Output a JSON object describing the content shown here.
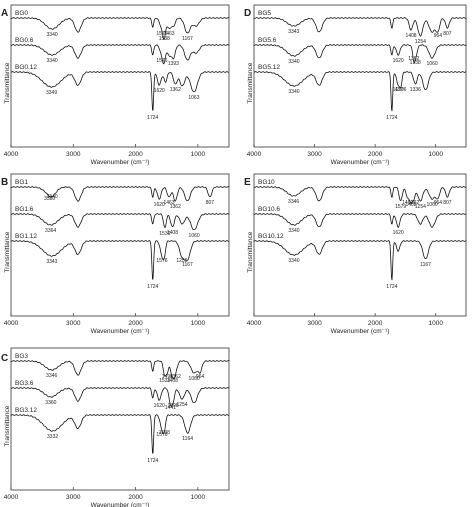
{
  "panels": [
    {
      "letter": "A",
      "spectra": [
        {
          "name": "BG0",
          "peaks": [
            {
              "x": 3340,
              "d": 11,
              "w": 110,
              "label": "3340"
            },
            {
              "x": 2925,
              "d": 14,
              "w": 50,
              "label": ""
            },
            {
              "x": 1724,
              "d": 9,
              "w": 16,
              "label": ""
            },
            {
              "x": 1576,
              "d": 10,
              "w": 34,
              "label": "1576"
            },
            {
              "x": 1538,
              "d": 15,
              "w": 22,
              "label": "1538"
            },
            {
              "x": 1463,
              "d": 10,
              "w": 30,
              "label": "1463"
            },
            {
              "x": 1393,
              "d": 8,
              "w": 30,
              "label": ""
            },
            {
              "x": 1167,
              "d": 15,
              "w": 45,
              "label": "1167"
            },
            {
              "x": 1030,
              "d": 8,
              "w": 50,
              "label": ""
            }
          ]
        },
        {
          "name": "BG0.6",
          "peaks": [
            {
              "x": 3340,
              "d": 10,
              "w": 120,
              "label": "3340"
            },
            {
              "x": 2925,
              "d": 13,
              "w": 50,
              "label": ""
            },
            {
              "x": 1724,
              "d": 10,
              "w": 16,
              "label": ""
            },
            {
              "x": 1576,
              "d": 10,
              "w": 30,
              "label": "1576"
            },
            {
              "x": 1540,
              "d": 13,
              "w": 22,
              "label": ""
            },
            {
              "x": 1463,
              "d": 10,
              "w": 30,
              "label": ""
            },
            {
              "x": 1393,
              "d": 13,
              "w": 30,
              "label": "1393"
            },
            {
              "x": 1167,
              "d": 15,
              "w": 45,
              "label": ""
            },
            {
              "x": 1030,
              "d": 8,
              "w": 50,
              "label": ""
            }
          ]
        },
        {
          "name": "BG0.12",
          "peaks": [
            {
              "x": 3349,
              "d": 15,
              "w": 150,
              "label": "3349"
            },
            {
              "x": 2925,
              "d": 13,
              "w": 50,
              "label": ""
            },
            {
              "x": 1724,
              "d": 40,
              "w": 14,
              "label": "1724"
            },
            {
              "x": 1620,
              "d": 13,
              "w": 30,
              "label": "1620"
            },
            {
              "x": 1520,
              "d": 10,
              "w": 25,
              "label": ""
            },
            {
              "x": 1362,
              "d": 12,
              "w": 30,
              "label": "1362"
            },
            {
              "x": 1250,
              "d": 14,
              "w": 40,
              "label": ""
            },
            {
              "x": 1063,
              "d": 20,
              "w": 55,
              "label": "1063"
            }
          ]
        }
      ]
    },
    {
      "letter": "B",
      "spectra": [
        {
          "name": "BG1",
          "peaks": [
            {
              "x": 3380,
              "d": 6,
              "w": 90,
              "label": "3380"
            },
            {
              "x": 3340,
              "d": 4,
              "w": 60,
              "label": "3340"
            },
            {
              "x": 2925,
              "d": 14,
              "w": 50,
              "label": ""
            },
            {
              "x": 1724,
              "d": 10,
              "w": 16,
              "label": ""
            },
            {
              "x": 1620,
              "d": 12,
              "w": 30,
              "label": "1620"
            },
            {
              "x": 1463,
              "d": 10,
              "w": 30,
              "label": "1463"
            },
            {
              "x": 1362,
              "d": 14,
              "w": 30,
              "label": "1362"
            },
            {
              "x": 1167,
              "d": 14,
              "w": 45,
              "label": ""
            },
            {
              "x": 807,
              "d": 10,
              "w": 30,
              "label": "807"
            }
          ]
        },
        {
          "name": "BG1.6",
          "peaks": [
            {
              "x": 3364,
              "d": 11,
              "w": 120,
              "label": "3364"
            },
            {
              "x": 2925,
              "d": 13,
              "w": 50,
              "label": ""
            },
            {
              "x": 1724,
              "d": 10,
              "w": 16,
              "label": ""
            },
            {
              "x": 1530,
              "d": 14,
              "w": 22,
              "label": "1530"
            },
            {
              "x": 1408,
              "d": 13,
              "w": 30,
              "label": "1408"
            },
            {
              "x": 1250,
              "d": 10,
              "w": 40,
              "label": ""
            },
            {
              "x": 1060,
              "d": 16,
              "w": 55,
              "label": "1060"
            }
          ]
        },
        {
          "name": "BG1.12",
          "peaks": [
            {
              "x": 3343,
              "d": 15,
              "w": 150,
              "label": "3343"
            },
            {
              "x": 2925,
              "d": 13,
              "w": 50,
              "label": ""
            },
            {
              "x": 1724,
              "d": 40,
              "w": 14,
              "label": "1724"
            },
            {
              "x": 1576,
              "d": 14,
              "w": 28,
              "label": "1576"
            },
            {
              "x": 1538,
              "d": 12,
              "w": 20,
              "label": ""
            },
            {
              "x": 1256,
              "d": 14,
              "w": 40,
              "label": "1256"
            },
            {
              "x": 1167,
              "d": 18,
              "w": 45,
              "label": "1167"
            }
          ]
        }
      ]
    },
    {
      "letter": "C",
      "spectra": [
        {
          "name": "BG3",
          "peaks": [
            {
              "x": 3346,
              "d": 9,
              "w": 110,
              "label": "3346"
            },
            {
              "x": 2925,
              "d": 14,
              "w": 50,
              "label": ""
            },
            {
              "x": 1724,
              "d": 10,
              "w": 16,
              "label": ""
            },
            {
              "x": 1533,
              "d": 14,
              "w": 22,
              "label": "1533"
            },
            {
              "x": 1490,
              "d": 10,
              "w": 20,
              "label": "1490"
            },
            {
              "x": 1408,
              "d": 14,
              "w": 30,
              "label": "1408"
            },
            {
              "x": 1362,
              "d": 10,
              "w": 30,
              "label": "1362"
            },
            {
              "x": 1060,
              "d": 12,
              "w": 50,
              "label": "1060"
            },
            {
              "x": 964,
              "d": 10,
              "w": 30,
              "label": "964"
            }
          ]
        },
        {
          "name": "BG3.6",
          "peaks": [
            {
              "x": 3360,
              "d": 9,
              "w": 110,
              "label": "3360"
            },
            {
              "x": 2925,
              "d": 13,
              "w": 50,
              "label": ""
            },
            {
              "x": 1724,
              "d": 10,
              "w": 16,
              "label": ""
            },
            {
              "x": 1620,
              "d": 12,
              "w": 30,
              "label": "1620"
            },
            {
              "x": 1441,
              "d": 14,
              "w": 25,
              "label": "1441"
            },
            {
              "x": 1398,
              "d": 12,
              "w": 25,
              "label": "1398"
            },
            {
              "x": 1254,
              "d": 11,
              "w": 40,
              "label": "1254"
            },
            {
              "x": 1060,
              "d": 15,
              "w": 50,
              "label": ""
            }
          ]
        },
        {
          "name": "BG3.12",
          "peaks": [
            {
              "x": 3332,
              "d": 16,
              "w": 150,
              "label": "3332"
            },
            {
              "x": 2925,
              "d": 13,
              "w": 50,
              "label": ""
            },
            {
              "x": 1724,
              "d": 40,
              "w": 14,
              "label": "1724"
            },
            {
              "x": 1576,
              "d": 14,
              "w": 28,
              "label": "1576"
            },
            {
              "x": 1538,
              "d": 12,
              "w": 20,
              "label": "1538"
            },
            {
              "x": 1164,
              "d": 18,
              "w": 45,
              "label": "1164"
            }
          ]
        }
      ]
    },
    {
      "letter": "D",
      "spectra": [
        {
          "name": "BG5",
          "peaks": [
            {
              "x": 3343,
              "d": 8,
              "w": 110,
              "label": "3343"
            },
            {
              "x": 2925,
              "d": 14,
              "w": 50,
              "label": ""
            },
            {
              "x": 1724,
              "d": 10,
              "w": 16,
              "label": ""
            },
            {
              "x": 1408,
              "d": 12,
              "w": 30,
              "label": "1408"
            },
            {
              "x": 1254,
              "d": 18,
              "w": 40,
              "label": "1254"
            },
            {
              "x": 1060,
              "d": 14,
              "w": 50,
              "label": ""
            },
            {
              "x": 964,
              "d": 12,
              "w": 30,
              "label": "964"
            },
            {
              "x": 807,
              "d": 10,
              "w": 30,
              "label": "807"
            }
          ]
        },
        {
          "name": "BG5.6",
          "peaks": [
            {
              "x": 3340,
              "d": 11,
              "w": 120,
              "label": "3340"
            },
            {
              "x": 2925,
              "d": 13,
              "w": 50,
              "label": ""
            },
            {
              "x": 1724,
              "d": 10,
              "w": 16,
              "label": ""
            },
            {
              "x": 1620,
              "d": 10,
              "w": 30,
              "label": "1620"
            },
            {
              "x": 1338,
              "d": 12,
              "w": 30,
              "label": "1338"
            },
            {
              "x": 1362,
              "d": 8,
              "w": 20,
              "label": "1362"
            },
            {
              "x": 1060,
              "d": 13,
              "w": 50,
              "label": "1060"
            }
          ]
        },
        {
          "name": "BG5.12",
          "peaks": [
            {
              "x": 3340,
              "d": 14,
              "w": 150,
              "label": "3340"
            },
            {
              "x": 2925,
              "d": 13,
              "w": 50,
              "label": ""
            },
            {
              "x": 1724,
              "d": 40,
              "w": 14,
              "label": "1724"
            },
            {
              "x": 1620,
              "d": 12,
              "w": 28,
              "label": "1620"
            },
            {
              "x": 1576,
              "d": 12,
              "w": 20,
              "label": "1576"
            },
            {
              "x": 1336,
              "d": 12,
              "w": 30,
              "label": "1336"
            },
            {
              "x": 1167,
              "d": 18,
              "w": 45,
              "label": ""
            }
          ]
        }
      ]
    },
    {
      "letter": "E",
      "spectra": [
        {
          "name": "BG10",
          "peaks": [
            {
              "x": 3346,
              "d": 9,
              "w": 110,
              "label": "3346"
            },
            {
              "x": 2925,
              "d": 14,
              "w": 50,
              "label": ""
            },
            {
              "x": 1724,
              "d": 10,
              "w": 16,
              "label": ""
            },
            {
              "x": 1579,
              "d": 14,
              "w": 26,
              "label": "1579"
            },
            {
              "x": 1463,
              "d": 10,
              "w": 28,
              "label": "1463"
            },
            {
              "x": 1408,
              "d": 12,
              "w": 26,
              "label": "1408"
            },
            {
              "x": 1362,
              "d": 10,
              "w": 26,
              "label": "1362"
            },
            {
              "x": 1254,
              "d": 14,
              "w": 40,
              "label": "1254"
            },
            {
              "x": 1060,
              "d": 12,
              "w": 50,
              "label": "1060"
            },
            {
              "x": 964,
              "d": 10,
              "w": 30,
              "label": "964"
            },
            {
              "x": 807,
              "d": 10,
              "w": 30,
              "label": "807"
            }
          ]
        },
        {
          "name": "BG10.6",
          "peaks": [
            {
              "x": 3340,
              "d": 11,
              "w": 120,
              "label": "3340"
            },
            {
              "x": 2925,
              "d": 13,
              "w": 50,
              "label": ""
            },
            {
              "x": 1724,
              "d": 10,
              "w": 16,
              "label": ""
            },
            {
              "x": 1620,
              "d": 13,
              "w": 30,
              "label": "1620"
            },
            {
              "x": 1254,
              "d": 10,
              "w": 40,
              "label": ""
            },
            {
              "x": 1060,
              "d": 13,
              "w": 50,
              "label": ""
            }
          ]
        },
        {
          "name": "BG10.12",
          "peaks": [
            {
              "x": 3340,
              "d": 14,
              "w": 150,
              "label": "3340"
            },
            {
              "x": 2925,
              "d": 13,
              "w": 50,
              "label": ""
            },
            {
              "x": 1724,
              "d": 40,
              "w": 14,
              "label": "1724"
            },
            {
              "x": 1620,
              "d": 10,
              "w": 28,
              "label": ""
            },
            {
              "x": 1167,
              "d": 18,
              "w": 45,
              "label": "1167"
            }
          ]
        }
      ]
    }
  ],
  "chart_data": [
    {
      "panel": "A",
      "type": "line",
      "xlabel": "Wavenumber (cm⁻¹)",
      "ylabel": "Transmittance",
      "xlim": [
        4000,
        500
      ],
      "xticks": [
        4000,
        3000,
        2000,
        1000
      ],
      "series": [
        {
          "name": "BG0"
        },
        {
          "name": "BG0.6"
        },
        {
          "name": "BG0.12"
        }
      ]
    },
    {
      "panel": "B",
      "type": "line",
      "xlabel": "Wavenumber (cm⁻¹)",
      "ylabel": "Transmittance",
      "xlim": [
        4000,
        500
      ],
      "xticks": [
        4000,
        3000,
        2000,
        1000
      ],
      "series": [
        {
          "name": "BG1"
        },
        {
          "name": "BG1.6"
        },
        {
          "name": "BG1.12"
        }
      ]
    },
    {
      "panel": "C",
      "type": "line",
      "xlabel": "Wavenumber (cm⁻¹)",
      "ylabel": "Transmittance",
      "xlim": [
        4000,
        500
      ],
      "xticks": [
        4000,
        3000,
        2000,
        1000
      ],
      "series": [
        {
          "name": "BG3"
        },
        {
          "name": "BG3.6"
        },
        {
          "name": "BG3.12"
        }
      ]
    },
    {
      "panel": "D",
      "type": "line",
      "xlabel": "Wavenumber (cm⁻¹)",
      "ylabel": "Transmittance",
      "xlim": [
        4000,
        500
      ],
      "xticks": [
        4000,
        3000,
        2000,
        1000
      ],
      "series": [
        {
          "name": "BG5"
        },
        {
          "name": "BG5.6"
        },
        {
          "name": "BG5.12"
        }
      ]
    },
    {
      "panel": "E",
      "type": "line",
      "xlabel": "Wavenumber (cm⁻¹)",
      "ylabel": "Transmittance",
      "xlim": [
        4000,
        500
      ],
      "xticks": [
        4000,
        3000,
        2000,
        1000
      ],
      "series": [
        {
          "name": "BG10"
        },
        {
          "name": "BG10.6"
        },
        {
          "name": "BG10.12"
        }
      ]
    }
  ]
}
